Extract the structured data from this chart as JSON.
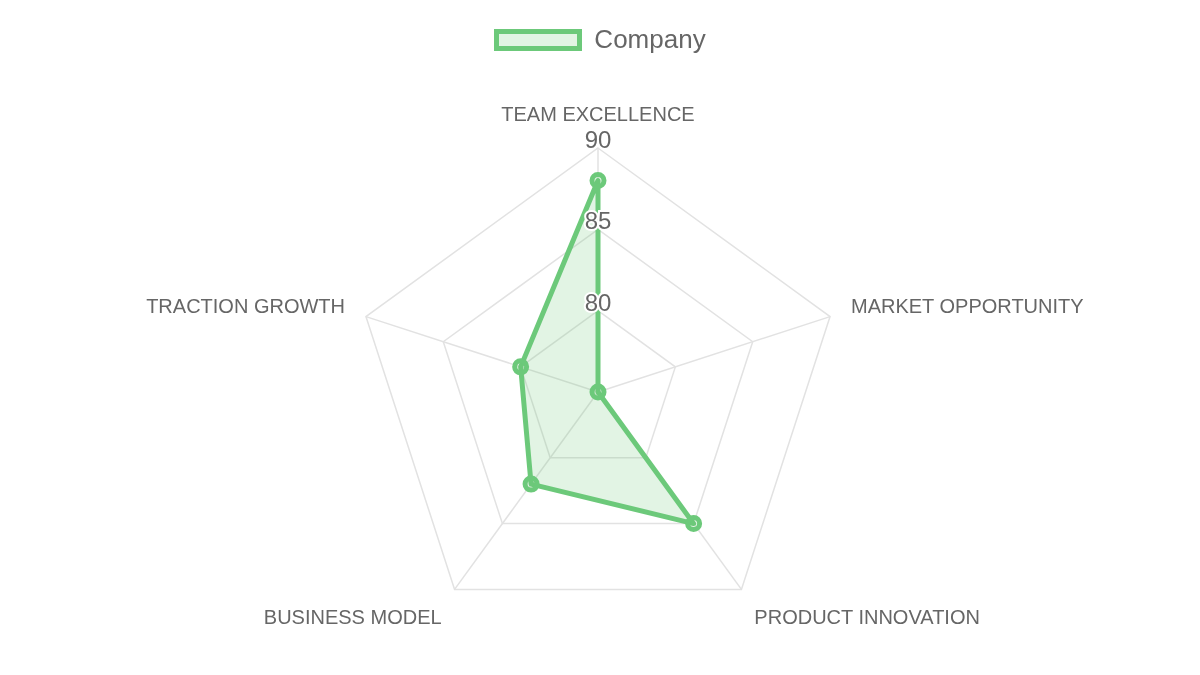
{
  "chart_data": {
    "type": "radar",
    "categories": [
      "TEAM EXCELLENCE",
      "MARKET OPPORTUNITY",
      "PRODUCT INNOVATION",
      "BUSINESS MODEL",
      "TRACTION GROWTH"
    ],
    "series": [
      {
        "name": "Company",
        "color": "#6cc97a",
        "values": [
          88,
          75,
          85,
          82,
          80
        ]
      }
    ],
    "ylim": [
      75,
      90
    ],
    "yticks": [
      80,
      85,
      90
    ],
    "grid": true,
    "legend": "top",
    "marker": "circle"
  }
}
